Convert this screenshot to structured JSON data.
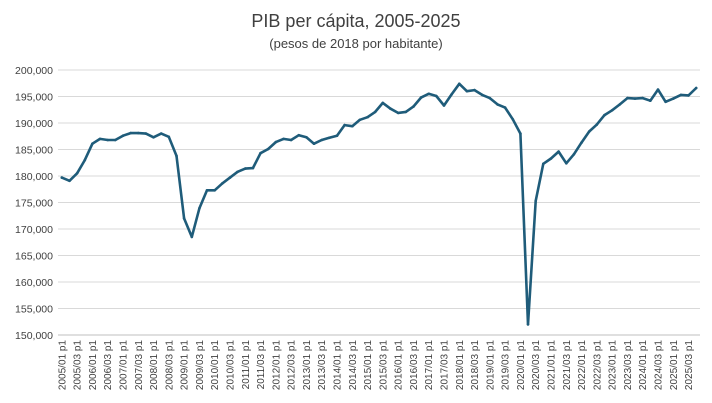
{
  "chart_data": {
    "type": "line",
    "title": "PIB per cápita, 2005-2025",
    "subtitle": "(pesos de 2018 por habitante)",
    "xlabel": "",
    "ylabel": "",
    "ylim": [
      150000,
      200000
    ],
    "yticks": [
      150000,
      155000,
      160000,
      165000,
      170000,
      175000,
      180000,
      185000,
      190000,
      195000,
      200000
    ],
    "ytick_labels": [
      "150,000",
      "155,000",
      "160,000",
      "165,000",
      "170,000",
      "175,000",
      "180,000",
      "185,000",
      "190,000",
      "195,000",
      "200,000"
    ],
    "grid": true,
    "legend": "none",
    "color": "#1f5c7a",
    "x_tick_labels": [
      "2005/01 p1",
      "2005/03 p1",
      "2006/01 p1",
      "2006/03 p1",
      "2007/01 p1",
      "2007/03 p1",
      "2008/01 p1",
      "2008/03 p1",
      "2009/01 p1",
      "2009/03 p1",
      "2010/01 p1",
      "2010/03 p1",
      "2011/01 p1",
      "2011/03 p1",
      "2012/01 p1",
      "2012/03 p1",
      "2013/01 p1",
      "2013/03 p1",
      "2014/01 p1",
      "2014/03 p1",
      "2015/01 p1",
      "2015/03 p1",
      "2016/01 p1",
      "2016/03 p1",
      "2017/01 p1",
      "2017/03 p1",
      "2018/01 p1",
      "2018/03 p1",
      "2019/01 p1",
      "2019/03 p1",
      "2020/01 p1",
      "2020/03 p1",
      "2021/01 p1",
      "2021/03 p1",
      "2022/01 p1",
      "2022/03 p1",
      "2023/01 p1",
      "2023/03 p1",
      "2024/01 p1",
      "2024/03 p1",
      "2025/01 p1",
      "2025/03 p1"
    ],
    "values": [
      179700,
      179100,
      180500,
      183000,
      186100,
      187000,
      186800,
      186800,
      187600,
      188100,
      188100,
      188000,
      187300,
      188000,
      187400,
      183800,
      172000,
      168500,
      173900,
      177300,
      177300,
      178600,
      179700,
      180800,
      181400,
      181500,
      184300,
      185100,
      186400,
      187000,
      186800,
      187700,
      187300,
      186100,
      186800,
      187200,
      187600,
      189600,
      189400,
      190600,
      191100,
      192100,
      193800,
      192700,
      191900,
      192100,
      193100,
      194800,
      195500,
      195100,
      193300,
      195400,
      197400,
      196000,
      196200,
      195300,
      194700,
      193500,
      192900,
      190700,
      188000,
      152000,
      175300,
      182300,
      183300,
      184600,
      182400,
      184100,
      186300,
      188400,
      189700,
      191500,
      192400,
      193500,
      194700,
      194600,
      194700,
      194200,
      196300,
      194000,
      194600,
      195300,
      195200,
      196600
    ]
  }
}
